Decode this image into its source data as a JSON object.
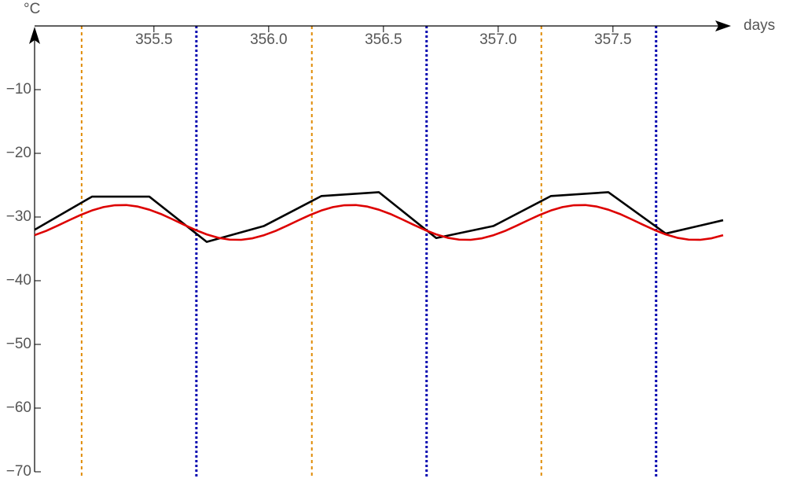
{
  "chart_data": {
    "type": "line",
    "x_label": "days",
    "y_label": "°C",
    "xlim": [
      354.98,
      357.98
    ],
    "ylim": [
      -70,
      0
    ],
    "xticks": [
      355.5,
      {
        "value": 356,
        "label": "356.0"
      },
      356.5,
      {
        "value": 357,
        "label": "357.0"
      },
      357.5
    ],
    "yticks": [
      {
        "value": -70,
        "label": "−70"
      },
      {
        "value": -60,
        "label": "−60"
      },
      {
        "value": -50,
        "label": "−50"
      },
      {
        "value": -40,
        "label": "−40"
      },
      {
        "value": -30,
        "label": "−30"
      },
      {
        "value": -20,
        "label": "−20"
      },
      {
        "value": -10,
        "label": "−10"
      }
    ],
    "vlines": [
      {
        "x": 355.185,
        "color": "#e08a00",
        "style": "dashed"
      },
      {
        "x": 356.188,
        "color": "#e08a00",
        "style": "dashed"
      },
      {
        "x": 357.188,
        "color": "#e08a00",
        "style": "dashed"
      },
      {
        "x": 355.685,
        "color": "#0000b0",
        "style": "dotted"
      },
      {
        "x": 356.688,
        "color": "#0000b0",
        "style": "dotted"
      },
      {
        "x": 357.688,
        "color": "#0000b0",
        "style": "dotted"
      }
    ],
    "series": [
      {
        "color": "#000000",
        "x": [
          354.98,
          355.23,
          355.48,
          355.73,
          355.98,
          356.23,
          356.48,
          356.73,
          356.98,
          357.23,
          357.48,
          357.73,
          357.98
        ],
        "values": [
          -32.0,
          -26.8,
          -26.8,
          -33.9,
          -31.4,
          -26.7,
          -26.1,
          -33.3,
          -31.4,
          -26.7,
          -26.1,
          -32.6,
          -30.5
        ]
      },
      {
        "color": "#dd0000",
        "x": [
          354.98,
          355.03,
          355.08,
          355.13,
          355.18,
          355.23,
          355.28,
          355.33,
          355.38,
          355.43,
          355.48,
          355.53,
          355.58,
          355.63,
          355.68,
          355.73,
          355.78,
          355.83,
          355.88,
          355.93,
          355.98,
          356.03,
          356.08,
          356.13,
          356.18,
          356.23,
          356.28,
          356.33,
          356.38,
          356.43,
          356.48,
          356.53,
          356.58,
          356.63,
          356.68,
          356.73,
          356.78,
          356.83,
          356.88,
          356.93,
          356.98,
          357.03,
          357.08,
          357.13,
          357.18,
          357.23,
          357.28,
          357.33,
          357.38,
          357.43,
          357.48,
          357.53,
          357.58,
          357.63,
          357.68,
          357.73,
          357.78,
          357.83,
          357.88,
          357.93,
          357.98
        ],
        "values": [
          -32.85,
          -32.18,
          -31.36,
          -30.51,
          -29.68,
          -28.97,
          -28.44,
          -28.15,
          -28.12,
          -28.36,
          -28.85,
          -29.52,
          -30.34,
          -31.19,
          -32.02,
          -32.73,
          -33.26,
          -33.55,
          -33.58,
          -33.34,
          -32.85,
          -32.18,
          -31.36,
          -30.51,
          -29.68,
          -28.97,
          -28.44,
          -28.15,
          -28.12,
          -28.36,
          -28.85,
          -29.52,
          -30.34,
          -31.19,
          -32.02,
          -32.73,
          -33.26,
          -33.55,
          -33.58,
          -33.34,
          -32.85,
          -32.18,
          -31.36,
          -30.51,
          -29.68,
          -28.97,
          -28.44,
          -28.15,
          -28.12,
          -28.36,
          -28.85,
          -29.52,
          -30.34,
          -31.19,
          -32.02,
          -32.73,
          -33.26,
          -33.55,
          -33.58,
          -33.34,
          -32.85
        ]
      }
    ]
  }
}
